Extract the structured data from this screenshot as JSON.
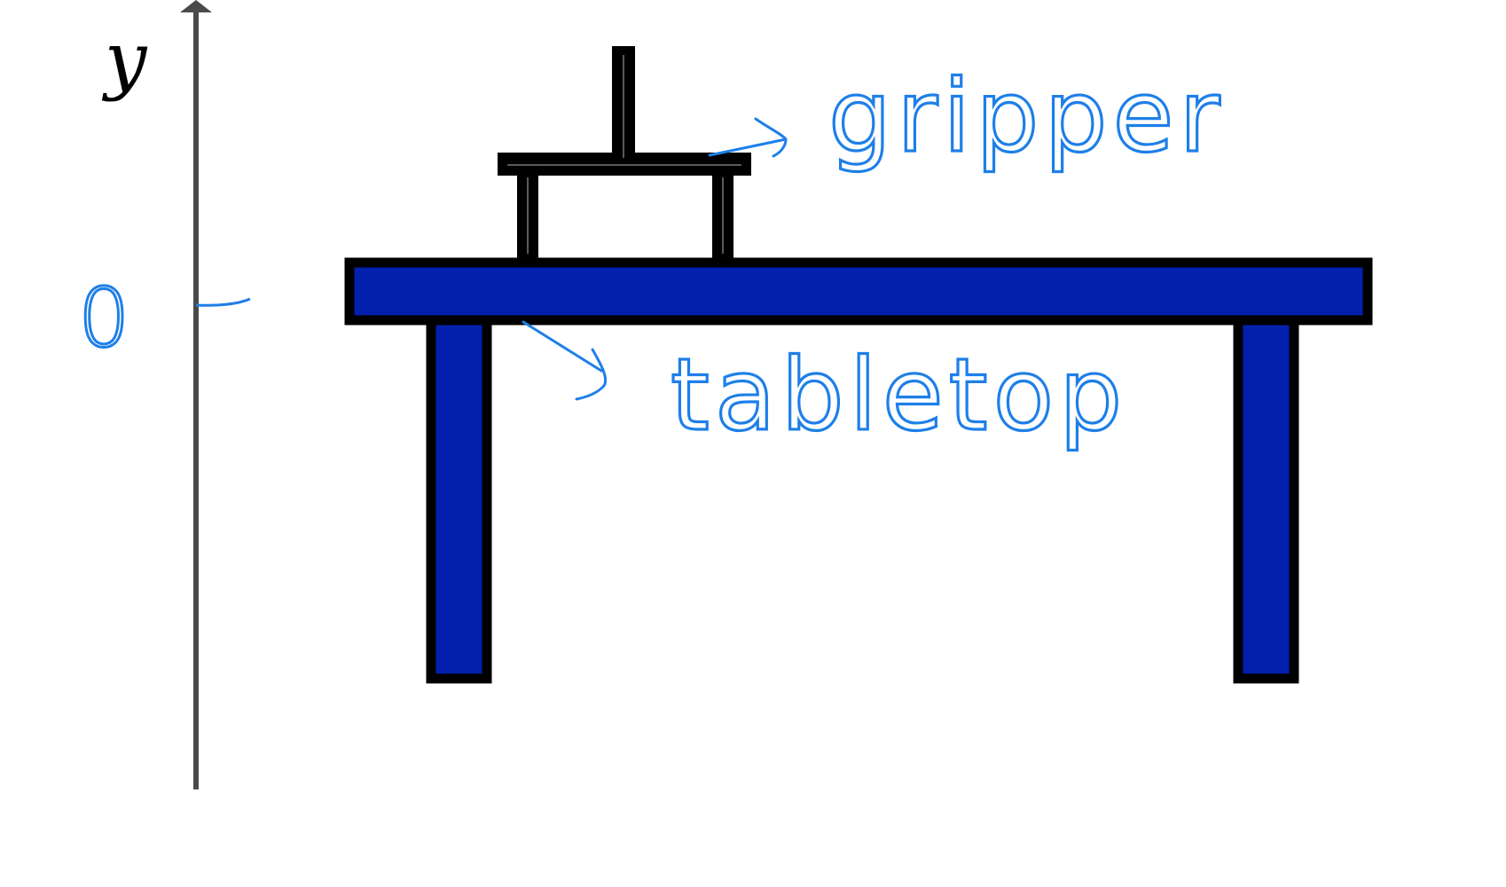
{
  "axis": {
    "name": "y",
    "tick_label": "0"
  },
  "annotations": {
    "gripper_label": "gripper",
    "tabletop_label": "tabletop"
  },
  "colors": {
    "axis": "#4a4a4a",
    "outline": "#000000",
    "table_fill": "#0220ad",
    "annotation_ink": "#1e7fe8",
    "background": "#ffffff"
  }
}
